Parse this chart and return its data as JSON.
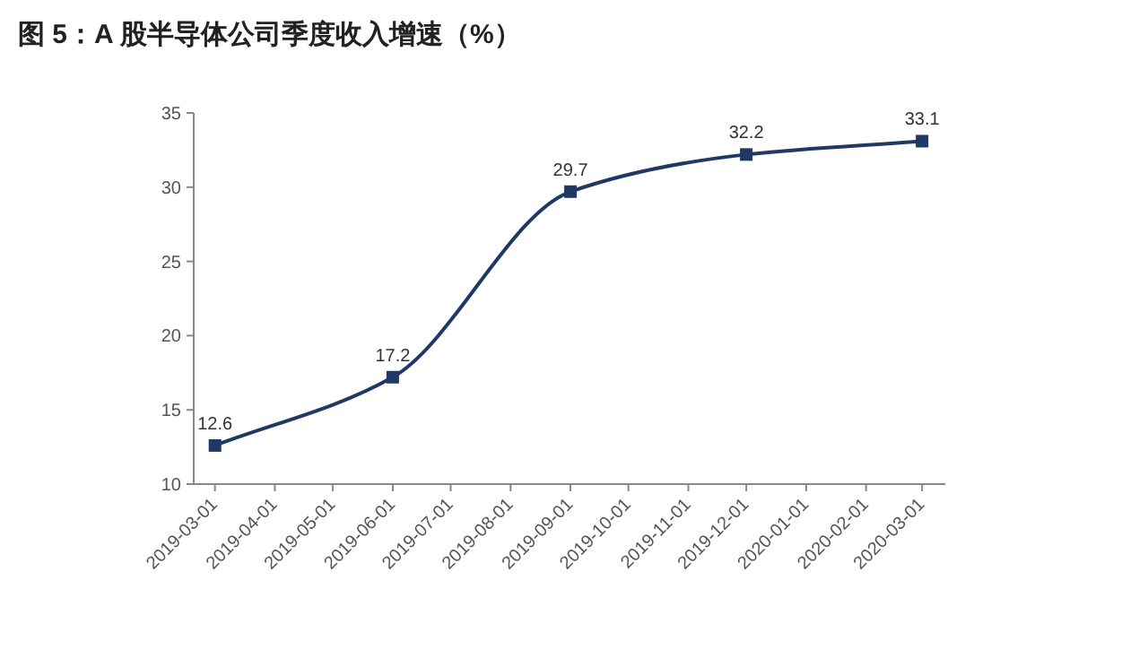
{
  "chart_data": {
    "type": "line",
    "title": "图 5：A 股半导体公司季度收入增速（%）",
    "x": [
      "2019-03-01",
      "2019-06-01",
      "2019-09-01",
      "2019-12-01",
      "2020-03-01"
    ],
    "series": [
      {
        "color": "#1f3864",
        "values": [
          12.6,
          17.2,
          29.7,
          32.2,
          33.1
        ]
      }
    ],
    "xlim": [
      "2019-02-18",
      "2020-03-13"
    ],
    "xticks": [
      "2019-03-01",
      "2019-04-01",
      "2019-05-01",
      "2019-06-01",
      "2019-07-01",
      "2019-08-01",
      "2019-09-01",
      "2019-10-01",
      "2019-11-01",
      "2019-12-01",
      "2020-01-01",
      "2020-02-01",
      "2020-03-01"
    ],
    "ylim": [
      10,
      35
    ],
    "yticks": [
      10,
      15,
      20,
      25,
      30,
      35
    ],
    "grid": false,
    "marker": "square",
    "line_style": "solid",
    "data_labels": true
  }
}
